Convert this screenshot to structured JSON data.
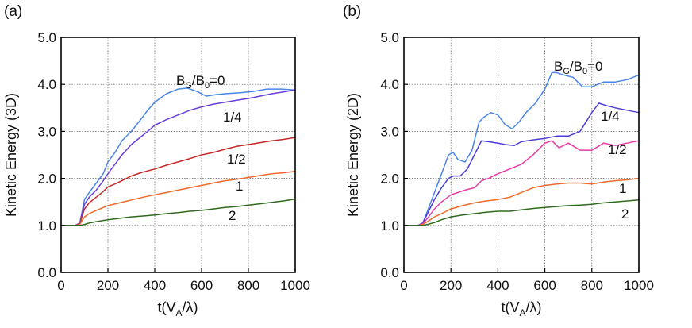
{
  "chart_data": [
    {
      "type": "line",
      "panel_label": "(a)",
      "ylabel": "Kinetic Energy (3D)",
      "xlabel": "t(V",
      "xlabel_sub": "A",
      "xlabel_end": "/λ)",
      "xlim": [
        0,
        1000
      ],
      "ylim": [
        0,
        5
      ],
      "xticks": [
        0,
        200,
        400,
        600,
        800,
        1000
      ],
      "yticks": [
        0,
        1,
        2,
        3,
        4,
        5
      ],
      "ytick_labels": [
        "0.0",
        "1.0",
        "2.0",
        "3.0",
        "4.0",
        "5.0"
      ],
      "grid": true,
      "series": [
        {
          "name": "BG/B0=0",
          "label_parts": {
            "a": "B",
            "a_sub": "G",
            "b": "/B",
            "b_sub": "0",
            "c": "=0"
          },
          "color": "#4a86e8",
          "x": [
            0,
            60,
            80,
            90,
            100,
            120,
            150,
            180,
            200,
            230,
            260,
            300,
            340,
            370,
            400,
            450,
            500,
            540,
            580,
            620,
            660,
            700,
            760,
            820,
            880,
            940,
            1000
          ],
          "y": [
            1.0,
            1.0,
            1.05,
            1.3,
            1.55,
            1.7,
            1.9,
            2.1,
            2.35,
            2.55,
            2.8,
            3.0,
            3.25,
            3.45,
            3.62,
            3.8,
            3.9,
            3.92,
            3.85,
            3.75,
            3.78,
            3.8,
            3.82,
            3.85,
            3.9,
            3.9,
            3.88
          ]
        },
        {
          "name": "1/4",
          "color": "#6a3fd8",
          "x": [
            0,
            60,
            80,
            90,
            100,
            120,
            150,
            180,
            200,
            230,
            260,
            300,
            340,
            370,
            400,
            450,
            500,
            550,
            600,
            650,
            700,
            750,
            800,
            850,
            900,
            950,
            1000
          ],
          "y": [
            1.0,
            1.0,
            1.05,
            1.25,
            1.45,
            1.6,
            1.75,
            1.95,
            2.1,
            2.3,
            2.5,
            2.72,
            2.88,
            3.0,
            3.13,
            3.25,
            3.35,
            3.45,
            3.52,
            3.58,
            3.62,
            3.66,
            3.7,
            3.75,
            3.8,
            3.84,
            3.88
          ]
        },
        {
          "name": "1/2",
          "color": "#c62828",
          "x": [
            0,
            60,
            80,
            90,
            100,
            120,
            150,
            180,
            200,
            230,
            260,
            300,
            340,
            400,
            450,
            500,
            550,
            600,
            650,
            700,
            750,
            800,
            850,
            900,
            950,
            1000
          ],
          "y": [
            1.0,
            1.0,
            1.03,
            1.2,
            1.35,
            1.48,
            1.6,
            1.72,
            1.82,
            1.88,
            1.95,
            2.05,
            2.12,
            2.2,
            2.28,
            2.35,
            2.42,
            2.5,
            2.55,
            2.62,
            2.68,
            2.72,
            2.76,
            2.8,
            2.83,
            2.87
          ]
        },
        {
          "name": "1",
          "color": "#f06a2a",
          "x": [
            0,
            60,
            80,
            90,
            100,
            120,
            150,
            180,
            200,
            250,
            300,
            350,
            400,
            450,
            500,
            550,
            600,
            650,
            700,
            750,
            800,
            850,
            900,
            950,
            1000
          ],
          "y": [
            1.0,
            1.0,
            1.02,
            1.1,
            1.18,
            1.25,
            1.32,
            1.38,
            1.42,
            1.48,
            1.54,
            1.6,
            1.65,
            1.7,
            1.75,
            1.8,
            1.85,
            1.9,
            1.95,
            1.98,
            2.02,
            2.06,
            2.1,
            2.12,
            2.15
          ]
        },
        {
          "name": "2",
          "color": "#2e6b1f",
          "x": [
            0,
            80,
            100,
            120,
            150,
            200,
            250,
            300,
            350,
            400,
            450,
            500,
            550,
            600,
            650,
            700,
            750,
            800,
            850,
            900,
            950,
            1000
          ],
          "y": [
            1.0,
            1.0,
            1.02,
            1.05,
            1.08,
            1.12,
            1.15,
            1.18,
            1.2,
            1.22,
            1.25,
            1.27,
            1.3,
            1.32,
            1.35,
            1.38,
            1.4,
            1.43,
            1.46,
            1.49,
            1.52,
            1.56
          ]
        }
      ],
      "annotations": [
        "BG/B0=0",
        "1/4",
        "1/2",
        "1",
        "2"
      ]
    },
    {
      "type": "line",
      "panel_label": "(b)",
      "ylabel": "Kinetic Energy (2D)",
      "xlabel": "t(V",
      "xlabel_sub": "A",
      "xlabel_end": "/λ)",
      "xlim": [
        0,
        1000
      ],
      "ylim": [
        0,
        5
      ],
      "xticks": [
        0,
        200,
        400,
        600,
        800,
        1000
      ],
      "yticks": [
        0,
        1,
        2,
        3,
        4,
        5
      ],
      "ytick_labels": [
        "0.0",
        "1.0",
        "2.0",
        "3.0",
        "4.0",
        "5.0"
      ],
      "grid": true,
      "series": [
        {
          "name": "BG/B0=0",
          "label_parts": {
            "a": "B",
            "a_sub": "G",
            "b": "/B",
            "b_sub": "0",
            "c": "=0"
          },
          "color": "#4a86e8",
          "x": [
            0,
            60,
            80,
            100,
            130,
            160,
            190,
            210,
            230,
            260,
            290,
            320,
            340,
            370,
            400,
            430,
            460,
            490,
            520,
            560,
            600,
            630,
            650,
            680,
            720,
            760,
            800,
            850,
            900,
            950,
            1000
          ],
          "y": [
            1.0,
            1.0,
            1.05,
            1.3,
            1.7,
            2.1,
            2.5,
            2.55,
            2.4,
            2.35,
            2.6,
            3.2,
            3.3,
            3.4,
            3.35,
            3.15,
            3.05,
            3.2,
            3.4,
            3.6,
            3.9,
            4.25,
            4.25,
            4.2,
            4.15,
            3.95,
            3.95,
            4.05,
            4.05,
            4.1,
            4.2
          ]
        },
        {
          "name": "1/4",
          "color": "#4b3cd8",
          "x": [
            0,
            60,
            80,
            100,
            130,
            160,
            190,
            210,
            240,
            270,
            300,
            330,
            360,
            400,
            430,
            470,
            500,
            550,
            600,
            650,
            700,
            750,
            800,
            830,
            860,
            900,
            950,
            1000
          ],
          "y": [
            1.0,
            1.0,
            1.05,
            1.25,
            1.55,
            1.8,
            2.0,
            2.05,
            2.05,
            2.2,
            2.5,
            2.8,
            2.78,
            2.75,
            2.72,
            2.7,
            2.78,
            2.82,
            2.85,
            2.9,
            2.9,
            3.0,
            3.4,
            3.6,
            3.55,
            3.5,
            3.45,
            3.4
          ]
        },
        {
          "name": "1/2",
          "color": "#e83aa8",
          "x": [
            0,
            60,
            80,
            100,
            130,
            160,
            200,
            230,
            260,
            300,
            330,
            360,
            400,
            450,
            500,
            550,
            600,
            630,
            660,
            700,
            750,
            800,
            850,
            900,
            950,
            1000
          ],
          "y": [
            1.0,
            1.0,
            1.03,
            1.15,
            1.35,
            1.5,
            1.65,
            1.7,
            1.75,
            1.8,
            1.95,
            2.0,
            2.1,
            2.2,
            2.3,
            2.5,
            2.75,
            2.8,
            2.65,
            2.75,
            2.6,
            2.6,
            2.75,
            2.7,
            2.75,
            2.8
          ]
        },
        {
          "name": "1",
          "color": "#f06a2a",
          "x": [
            0,
            60,
            80,
            100,
            130,
            160,
            200,
            250,
            300,
            350,
            400,
            450,
            500,
            550,
            600,
            650,
            700,
            750,
            800,
            850,
            900,
            950,
            1000
          ],
          "y": [
            1.0,
            1.0,
            1.02,
            1.08,
            1.18,
            1.25,
            1.35,
            1.42,
            1.48,
            1.52,
            1.55,
            1.6,
            1.7,
            1.8,
            1.85,
            1.88,
            1.9,
            1.9,
            1.88,
            1.92,
            1.95,
            1.97,
            2.0
          ]
        },
        {
          "name": "2",
          "color": "#2e6b1f",
          "x": [
            0,
            80,
            100,
            130,
            160,
            200,
            250,
            300,
            350,
            400,
            450,
            500,
            550,
            600,
            650,
            700,
            750,
            800,
            850,
            900,
            950,
            1000
          ],
          "y": [
            1.0,
            1.0,
            1.02,
            1.06,
            1.12,
            1.18,
            1.22,
            1.25,
            1.28,
            1.3,
            1.3,
            1.33,
            1.36,
            1.38,
            1.4,
            1.42,
            1.43,
            1.45,
            1.48,
            1.5,
            1.52,
            1.54
          ]
        }
      ],
      "annotations": [
        "BG/B0=0",
        "1/4",
        "1/2",
        "1",
        "2"
      ]
    }
  ]
}
